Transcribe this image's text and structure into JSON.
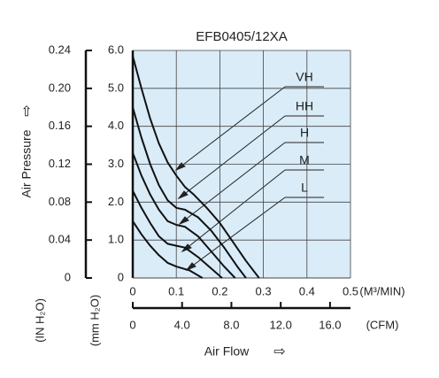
{
  "chart_data": {
    "type": "line",
    "title": "EFB0405/12XA",
    "ylabel": "Air Pressure",
    "xlabel": "Air Flow",
    "y_unit_label": "(mm H₂O)",
    "y2_unit_label": "(IN H₂O)",
    "x_unit_label": "(M³/MIN)",
    "x2_unit_label": "(CFM)",
    "xlim": [
      0,
      0.5
    ],
    "xticks": [
      0,
      0.1,
      0.2,
      0.3,
      0.4,
      0.5
    ],
    "x2lim": [
      0,
      17.66
    ],
    "x2ticks": [
      0,
      {
        "value": 4,
        "label": "4.0"
      },
      {
        "value": 8,
        "label": "8.0"
      },
      {
        "value": 12,
        "label": "12.0"
      },
      {
        "value": 16,
        "label": "16.0"
      }
    ],
    "ylim": [
      0,
      6
    ],
    "yticks": [
      0,
      {
        "value": 1,
        "label": "1.0"
      },
      {
        "value": 2,
        "label": "2.0"
      },
      {
        "value": 3,
        "label": "3.0"
      },
      {
        "value": 4,
        "label": "4.0"
      },
      {
        "value": 5,
        "label": "5.0"
      },
      {
        "value": 6,
        "label": "6.0"
      }
    ],
    "y2lim": [
      0,
      0.24
    ],
    "y2ticks": [
      0,
      0.04,
      0.08,
      0.12,
      0.16,
      {
        "value": 0.2,
        "label": "0.20"
      },
      0.24
    ],
    "grid": true,
    "series": [
      {
        "name": "VH",
        "color": "#111111",
        "x": [
          0,
          0.02,
          0.04,
          0.06,
          0.08,
          0.1,
          0.12,
          0.14,
          0.17,
          0.2,
          0.23,
          0.26,
          0.29
        ],
        "values": [
          5.85,
          5.0,
          4.2,
          3.55,
          3.05,
          2.7,
          2.4,
          2.2,
          1.85,
          1.45,
          0.95,
          0.45,
          0
        ]
      },
      {
        "name": "HH",
        "color": "#111111",
        "x": [
          0,
          0.02,
          0.04,
          0.06,
          0.08,
          0.1,
          0.12,
          0.15,
          0.18,
          0.21,
          0.24,
          0.26
        ],
        "values": [
          4.5,
          3.7,
          3.0,
          2.45,
          2.05,
          1.85,
          1.8,
          1.6,
          1.25,
          0.8,
          0.3,
          0
        ]
      },
      {
        "name": "H",
        "color": "#111111",
        "x": [
          0,
          0.02,
          0.04,
          0.06,
          0.08,
          0.1,
          0.12,
          0.15,
          0.18,
          0.21,
          0.235
        ],
        "values": [
          3.3,
          2.7,
          2.2,
          1.8,
          1.5,
          1.4,
          1.35,
          1.1,
          0.7,
          0.3,
          0
        ]
      },
      {
        "name": "M",
        "color": "#111111",
        "x": [
          0,
          0.02,
          0.04,
          0.06,
          0.08,
          0.1,
          0.12,
          0.15,
          0.18,
          0.205
        ],
        "values": [
          2.3,
          1.85,
          1.45,
          1.1,
          0.9,
          0.85,
          0.8,
          0.55,
          0.25,
          0
        ]
      },
      {
        "name": "L",
        "color": "#111111",
        "x": [
          0,
          0.02,
          0.04,
          0.06,
          0.08,
          0.1,
          0.13,
          0.16
        ],
        "values": [
          1.5,
          1.15,
          0.85,
          0.6,
          0.4,
          0.3,
          0.2,
          0
        ]
      }
    ]
  }
}
